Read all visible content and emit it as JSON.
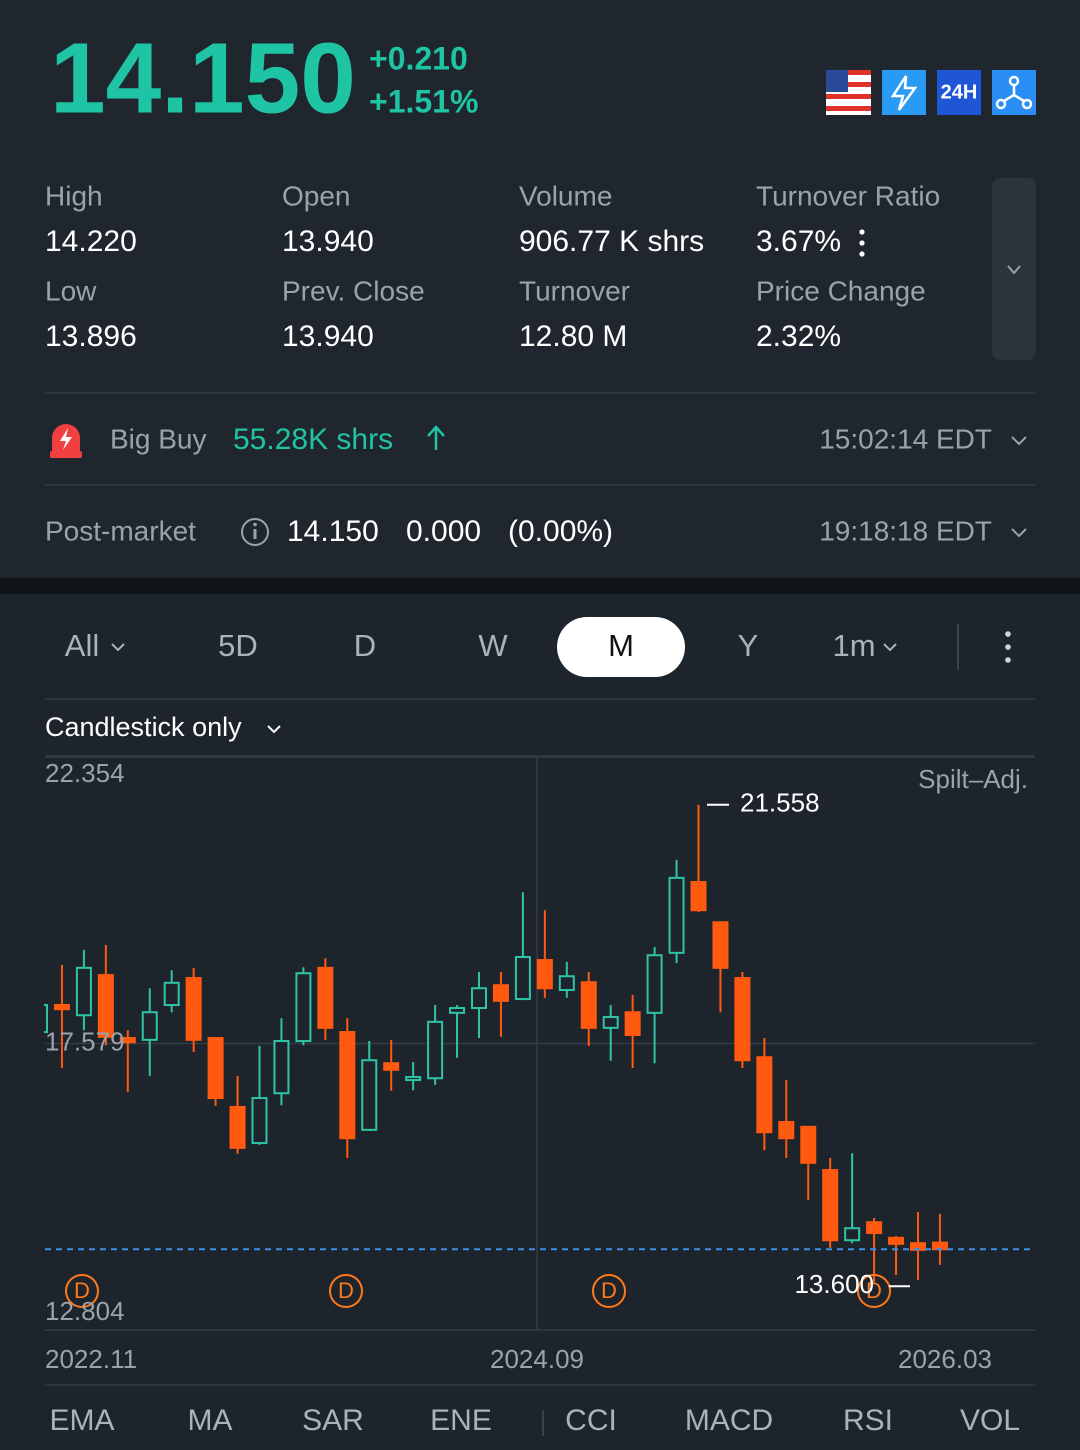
{
  "header": {
    "price": "14.150",
    "change": "+0.210",
    "change_pct": "+1.51%",
    "badge": "24H"
  },
  "stats": [
    {
      "label": "High",
      "value": "14.220",
      "color": "#22c3a3"
    },
    {
      "label": "Open",
      "value": "13.940"
    },
    {
      "label": "Volume",
      "value": "906.77 K shrs"
    },
    {
      "label": "Turnover Ratio",
      "value": "3.67%"
    },
    {
      "label": "Low",
      "value": "13.896",
      "color": "#ff5c1f"
    },
    {
      "label": "Prev. Close",
      "value": "13.940"
    },
    {
      "label": "Turnover",
      "value": "12.80 M"
    },
    {
      "label": "Price Change",
      "value": "2.32%"
    }
  ],
  "big_buy": {
    "label": "Big Buy",
    "amount": "55.28K shrs",
    "time": "15:02:14 EDT"
  },
  "post_market": {
    "label": "Post-market",
    "price": "14.150",
    "change": "0.000",
    "change_pct": "(0.00%)",
    "time": "19:18:18 EDT"
  },
  "tabs": [
    "All",
    "5D",
    "D",
    "W",
    "M",
    "Y",
    "1m"
  ],
  "selected_tab": 4,
  "chart_style": "Candlestick only",
  "chart_data": {
    "type": "candlestick",
    "note": "Spilt–Adj.",
    "x_tick_labels": [
      "2022.11",
      "2024.09",
      "2026.03"
    ],
    "ylim": [
      12.804,
      22.354
    ],
    "yticks": [
      22.354,
      17.579,
      12.804
    ],
    "up_color": "#2ec4a5",
    "down_color": "#ff5a10",
    "open": [
      17.77,
      18.22,
      18.05,
      18.72,
      17.67,
      17.64,
      18.22,
      18.67,
      17.67,
      16.52,
      15.92,
      16.75,
      17.62,
      18.84,
      17.77,
      16.14,
      17.25,
      16.97,
      17.0,
      18.09,
      18.17,
      18.55,
      18.32,
      18.97,
      18.47,
      18.6,
      17.84,
      18.1,
      18.09,
      19.09,
      20.27,
      19.6,
      18.67,
      17.35,
      16.27,
      16.19,
      15.47,
      14.3,
      14.6,
      14.34,
      14.25,
      14.26
    ],
    "high": [
      18.3,
      18.89,
      19.14,
      19.22,
      17.8,
      18.5,
      18.8,
      18.84,
      17.67,
      17.04,
      17.54,
      18.0,
      18.85,
      19.0,
      18.0,
      17.62,
      17.64,
      17.27,
      18.22,
      18.22,
      18.77,
      18.77,
      20.1,
      19.8,
      18.94,
      18.77,
      18.22,
      18.39,
      19.19,
      20.64,
      21.558,
      19.6,
      18.77,
      17.67,
      16.97,
      16.19,
      15.67,
      15.75,
      14.67,
      14.37,
      14.77,
      14.74
    ],
    "low": [
      17.72,
      17.17,
      17.8,
      17.55,
      16.77,
      17.04,
      18.1,
      17.44,
      16.54,
      15.74,
      15.89,
      16.55,
      17.55,
      17.64,
      15.67,
      16.12,
      16.79,
      16.8,
      16.89,
      17.34,
      17.67,
      17.69,
      18.3,
      18.34,
      18.34,
      17.54,
      17.29,
      17.17,
      17.25,
      18.92,
      19.77,
      18.1,
      17.17,
      15.8,
      15.67,
      14.97,
      14.17,
      14.25,
      13.6,
      13.72,
      13.64,
      13.89
    ],
    "close": [
      18.22,
      18.15,
      18.84,
      17.69,
      17.6,
      18.1,
      18.59,
      17.64,
      16.67,
      15.84,
      16.67,
      17.62,
      18.75,
      17.84,
      16.0,
      17.3,
      17.14,
      17.02,
      17.94,
      18.17,
      18.5,
      18.29,
      19.02,
      18.5,
      18.7,
      17.84,
      18.02,
      17.72,
      19.05,
      20.34,
      19.8,
      18.84,
      17.3,
      16.1,
      16.0,
      15.59,
      14.3,
      14.5,
      14.42,
      14.24,
      14.14,
      14.15
    ],
    "last_price": 14.15,
    "last_price_color": "#3d8fe8",
    "high_annotation": {
      "value": 21.558,
      "label": "21.558"
    },
    "low_annotation": {
      "value": 13.6,
      "label": "13.600"
    },
    "dividend_label": "D",
    "dividend_color": "#ff7a1a"
  },
  "indicators": [
    "EMA",
    "MA",
    "SAR",
    "ENE",
    "CCI",
    "MACD",
    "RSI",
    "VOL"
  ]
}
